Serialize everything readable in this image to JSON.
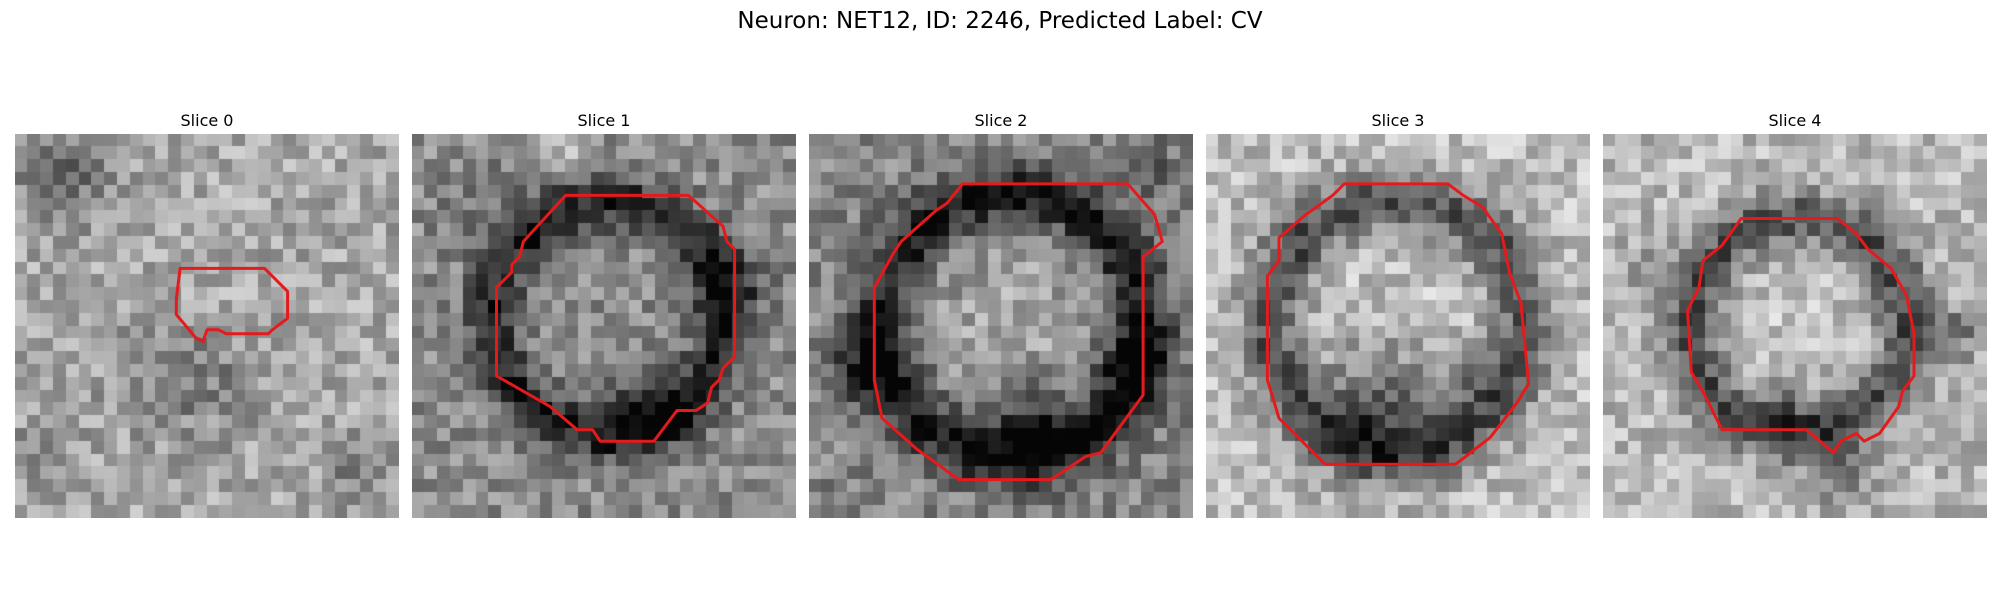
{
  "figure": {
    "title": "Neuron: NET12, ID: 2246, Predicted Label: CV"
  },
  "slices": [
    {
      "title": "Slice 0",
      "image": "grayscale-microscopy-patch",
      "contour": [
        [
          0.43,
          0.35
        ],
        [
          0.65,
          0.35
        ],
        [
          0.71,
          0.41
        ],
        [
          0.71,
          0.48
        ],
        [
          0.67,
          0.51
        ],
        [
          0.66,
          0.52
        ],
        [
          0.55,
          0.52
        ],
        [
          0.53,
          0.51
        ],
        [
          0.5,
          0.51
        ],
        [
          0.49,
          0.54
        ],
        [
          0.47,
          0.53
        ],
        [
          0.42,
          0.47
        ],
        [
          0.42,
          0.43
        ]
      ],
      "contour_color": "#e41a1c"
    },
    {
      "title": "Slice 1",
      "image": "grayscale-microscopy-patch",
      "contour": [
        [
          0.4,
          0.16
        ],
        [
          0.72,
          0.16
        ],
        [
          0.81,
          0.24
        ],
        [
          0.82,
          0.28
        ],
        [
          0.84,
          0.3
        ],
        [
          0.84,
          0.58
        ],
        [
          0.81,
          0.61
        ],
        [
          0.8,
          0.64
        ],
        [
          0.78,
          0.66
        ],
        [
          0.77,
          0.7
        ],
        [
          0.74,
          0.72
        ],
        [
          0.69,
          0.72
        ],
        [
          0.63,
          0.8
        ],
        [
          0.49,
          0.8
        ],
        [
          0.47,
          0.77
        ],
        [
          0.43,
          0.77
        ],
        [
          0.36,
          0.71
        ],
        [
          0.22,
          0.63
        ],
        [
          0.22,
          0.4
        ],
        [
          0.26,
          0.36
        ],
        [
          0.26,
          0.34
        ],
        [
          0.28,
          0.32
        ],
        [
          0.29,
          0.28
        ]
      ],
      "contour_color": "#e41a1c"
    },
    {
      "title": "Slice 2",
      "image": "grayscale-microscopy-patch",
      "contour": [
        [
          0.4,
          0.13
        ],
        [
          0.83,
          0.13
        ],
        [
          0.9,
          0.21
        ],
        [
          0.92,
          0.28
        ],
        [
          0.87,
          0.32
        ],
        [
          0.87,
          0.68
        ],
        [
          0.76,
          0.83
        ],
        [
          0.72,
          0.84
        ],
        [
          0.63,
          0.9
        ],
        [
          0.39,
          0.9
        ],
        [
          0.28,
          0.82
        ],
        [
          0.19,
          0.74
        ],
        [
          0.17,
          0.64
        ],
        [
          0.17,
          0.4
        ],
        [
          0.22,
          0.31
        ],
        [
          0.24,
          0.28
        ],
        [
          0.33,
          0.2
        ],
        [
          0.36,
          0.18
        ]
      ],
      "contour_color": "#e41a1c"
    },
    {
      "title": "Slice 3",
      "image": "grayscale-microscopy-patch",
      "contour": [
        [
          0.33,
          0.16
        ],
        [
          0.36,
          0.13
        ],
        [
          0.63,
          0.13
        ],
        [
          0.67,
          0.16
        ],
        [
          0.72,
          0.19
        ],
        [
          0.77,
          0.26
        ],
        [
          0.79,
          0.36
        ],
        [
          0.82,
          0.44
        ],
        [
          0.84,
          0.65
        ],
        [
          0.81,
          0.7
        ],
        [
          0.74,
          0.79
        ],
        [
          0.65,
          0.86
        ],
        [
          0.31,
          0.86
        ],
        [
          0.19,
          0.74
        ],
        [
          0.16,
          0.64
        ],
        [
          0.16,
          0.37
        ],
        [
          0.19,
          0.33
        ],
        [
          0.19,
          0.27
        ],
        [
          0.26,
          0.21
        ]
      ],
      "contour_color": "#e41a1c"
    },
    {
      "title": "Slice 4",
      "image": "grayscale-microscopy-patch",
      "contour": [
        [
          0.36,
          0.22
        ],
        [
          0.61,
          0.22
        ],
        [
          0.66,
          0.26
        ],
        [
          0.69,
          0.3
        ],
        [
          0.75,
          0.35
        ],
        [
          0.79,
          0.42
        ],
        [
          0.81,
          0.52
        ],
        [
          0.81,
          0.63
        ],
        [
          0.78,
          0.67
        ],
        [
          0.77,
          0.71
        ],
        [
          0.72,
          0.78
        ],
        [
          0.68,
          0.8
        ],
        [
          0.66,
          0.78
        ],
        [
          0.62,
          0.8
        ],
        [
          0.6,
          0.83
        ],
        [
          0.53,
          0.77
        ],
        [
          0.31,
          0.77
        ],
        [
          0.26,
          0.67
        ],
        [
          0.23,
          0.62
        ],
        [
          0.22,
          0.46
        ],
        [
          0.25,
          0.4
        ],
        [
          0.26,
          0.33
        ],
        [
          0.31,
          0.29
        ]
      ],
      "contour_color": "#e41a1c"
    }
  ]
}
